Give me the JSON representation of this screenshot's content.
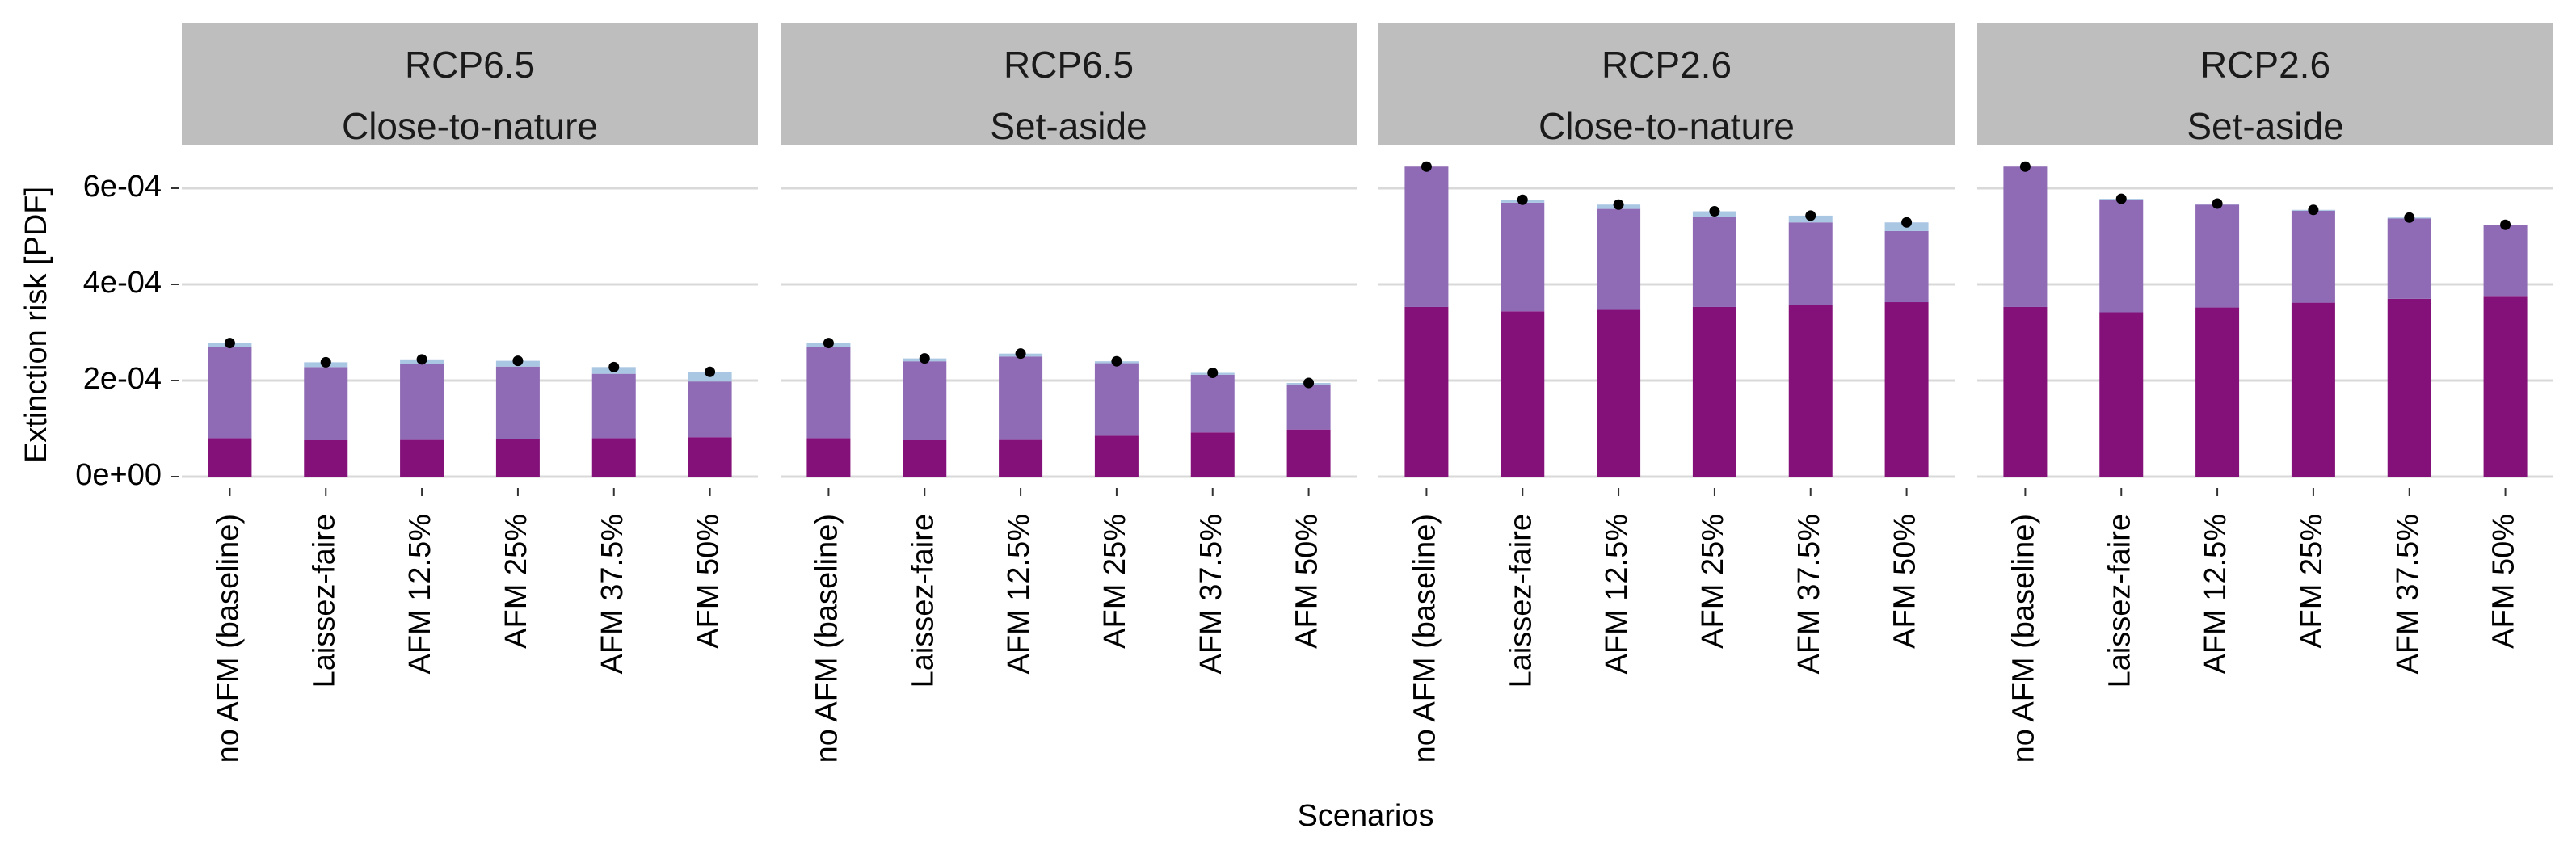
{
  "chart_data": {
    "type": "bar",
    "stacked": true,
    "xlabel": "Scenarios",
    "ylabel": "Extinction risk [PDF]",
    "ylim": [
      0,
      0.00068
    ],
    "yticks": [
      0,
      0.0002,
      0.0004,
      0.0006
    ],
    "ytick_labels": [
      "0e+00",
      "2e-04",
      "4e-04",
      "6e-04"
    ],
    "grid": true,
    "categories": [
      "no AFM (baseline)",
      "Laissez-faire",
      "AFM 12.5%",
      "AFM 25%",
      "AFM 37.5%",
      "AFM 50%"
    ],
    "colors": {
      "component_1": "#84117a",
      "component_2": "#8e6bb4",
      "component_3": "#a9c6e3",
      "total_point": "#000000",
      "strip_bg": "#bebebe",
      "grid": "#d9d9d9"
    },
    "panels": [
      {
        "strip": [
          "RCP6.5",
          "Close-to-nature"
        ],
        "series": [
          {
            "values": [
              8e-05,
              7.7e-05,
              7.8e-05,
              7.9e-05,
              8e-05,
              8.2e-05
            ]
          },
          {
            "values": [
              0.00019,
              0.000151,
              0.000157,
              0.00015,
              0.000134,
              0.000116
            ]
          },
          {
            "values": [
              8e-06,
              1e-05,
              9e-06,
              1.2e-05,
              1.4e-05,
              2e-05
            ]
          }
        ],
        "totals": [
          0.000278,
          0.000238,
          0.000244,
          0.000241,
          0.000228,
          0.000218
        ]
      },
      {
        "strip": [
          "RCP6.5",
          "Set-aside"
        ],
        "series": [
          {
            "values": [
              8e-05,
              7.7e-05,
              7.8e-05,
              8.5e-05,
              9.2e-05,
              9.8e-05
            ]
          },
          {
            "values": [
              0.00019,
              0.000163,
              0.000172,
              0.000151,
              0.00012,
              9.4e-05
            ]
          },
          {
            "values": [
              8e-06,
              6e-06,
              6e-06,
              4e-06,
              4e-06,
              3e-06
            ]
          }
        ],
        "totals": [
          0.000278,
          0.000246,
          0.000256,
          0.00024,
          0.000216,
          0.000195
        ]
      },
      {
        "strip": [
          "RCP2.6",
          "Close-to-nature"
        ],
        "series": [
          {
            "values": [
              0.000353,
              0.000344,
              0.000347,
              0.000353,
              0.000358,
              0.000363
            ]
          },
          {
            "values": [
              0.000292,
              0.000226,
              0.00021,
              0.000188,
              0.000171,
              0.000148
            ]
          },
          {
            "values": [
              0.0,
              6e-06,
              9e-06,
              1.1e-05,
              1.4e-05,
              1.8e-05
            ]
          }
        ],
        "totals": [
          0.000645,
          0.000576,
          0.000566,
          0.000552,
          0.000543,
          0.000529
        ]
      },
      {
        "strip": [
          "RCP2.6",
          "Set-aside"
        ],
        "series": [
          {
            "values": [
              0.000353,
              0.000342,
              0.000352,
              0.000362,
              0.00037,
              0.000376
            ]
          },
          {
            "values": [
              0.000292,
              0.000233,
              0.000214,
              0.000191,
              0.000167,
              0.000147
            ]
          },
          {
            "values": [
              0.0,
              3e-06,
              2e-06,
              2e-06,
              2e-06,
              1e-06
            ]
          }
        ],
        "totals": [
          0.000645,
          0.000578,
          0.000568,
          0.000555,
          0.000539,
          0.000524
        ]
      }
    ]
  }
}
